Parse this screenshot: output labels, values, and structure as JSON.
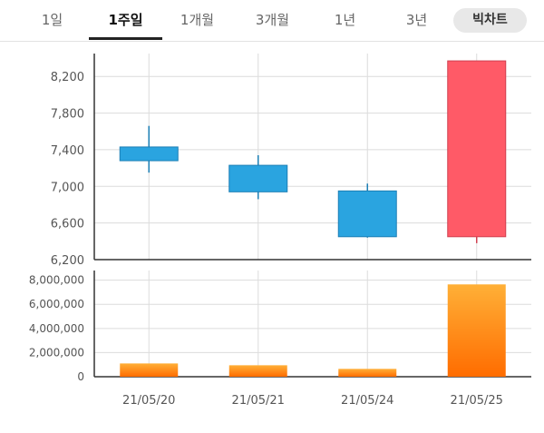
{
  "tabs": [
    {
      "label": "1일",
      "active": false
    },
    {
      "label": "1주일",
      "active": true
    },
    {
      "label": "1개월",
      "active": false
    },
    {
      "label": "3개월",
      "active": false
    },
    {
      "label": "1년",
      "active": false
    },
    {
      "label": "3년",
      "active": false
    }
  ],
  "big_chart_label": "빅차트",
  "colors": {
    "up": "#ff5a67",
    "down": "#2aa4e0",
    "volume_top": "#ffb037",
    "volume_bottom": "#ff6c00",
    "grid": "#dcdcdc",
    "axis": "#333333",
    "label": "#555555"
  },
  "chart_data": [
    {
      "type": "candlestick",
      "categories": [
        "21/05/20",
        "21/05/21",
        "21/05/24",
        "21/05/25"
      ],
      "ylim": [
        6200,
        8450
      ],
      "yticks": [
        "6,200",
        "6,600",
        "7,000",
        "7,400",
        "7,800",
        "8,200"
      ],
      "candles": [
        {
          "date": "21/05/20",
          "open": 7430,
          "high": 7660,
          "low": 7150,
          "close": 7280
        },
        {
          "date": "21/05/21",
          "open": 7230,
          "high": 7340,
          "low": 6860,
          "close": 6940
        },
        {
          "date": "21/05/24",
          "open": 6950,
          "high": 7030,
          "low": 6440,
          "close": 6450
        },
        {
          "date": "21/05/25",
          "open": 6450,
          "high": 8370,
          "low": 6380,
          "close": 8370
        }
      ]
    },
    {
      "type": "bar",
      "categories": [
        "21/05/20",
        "21/05/21",
        "21/05/24",
        "21/05/25"
      ],
      "values": [
        1100000,
        950000,
        650000,
        7650000
      ],
      "ylim": [
        0,
        8800000
      ],
      "yticks": [
        "0",
        "2,000,000",
        "4,000,000",
        "6,000,000",
        "8,000,000"
      ]
    }
  ]
}
